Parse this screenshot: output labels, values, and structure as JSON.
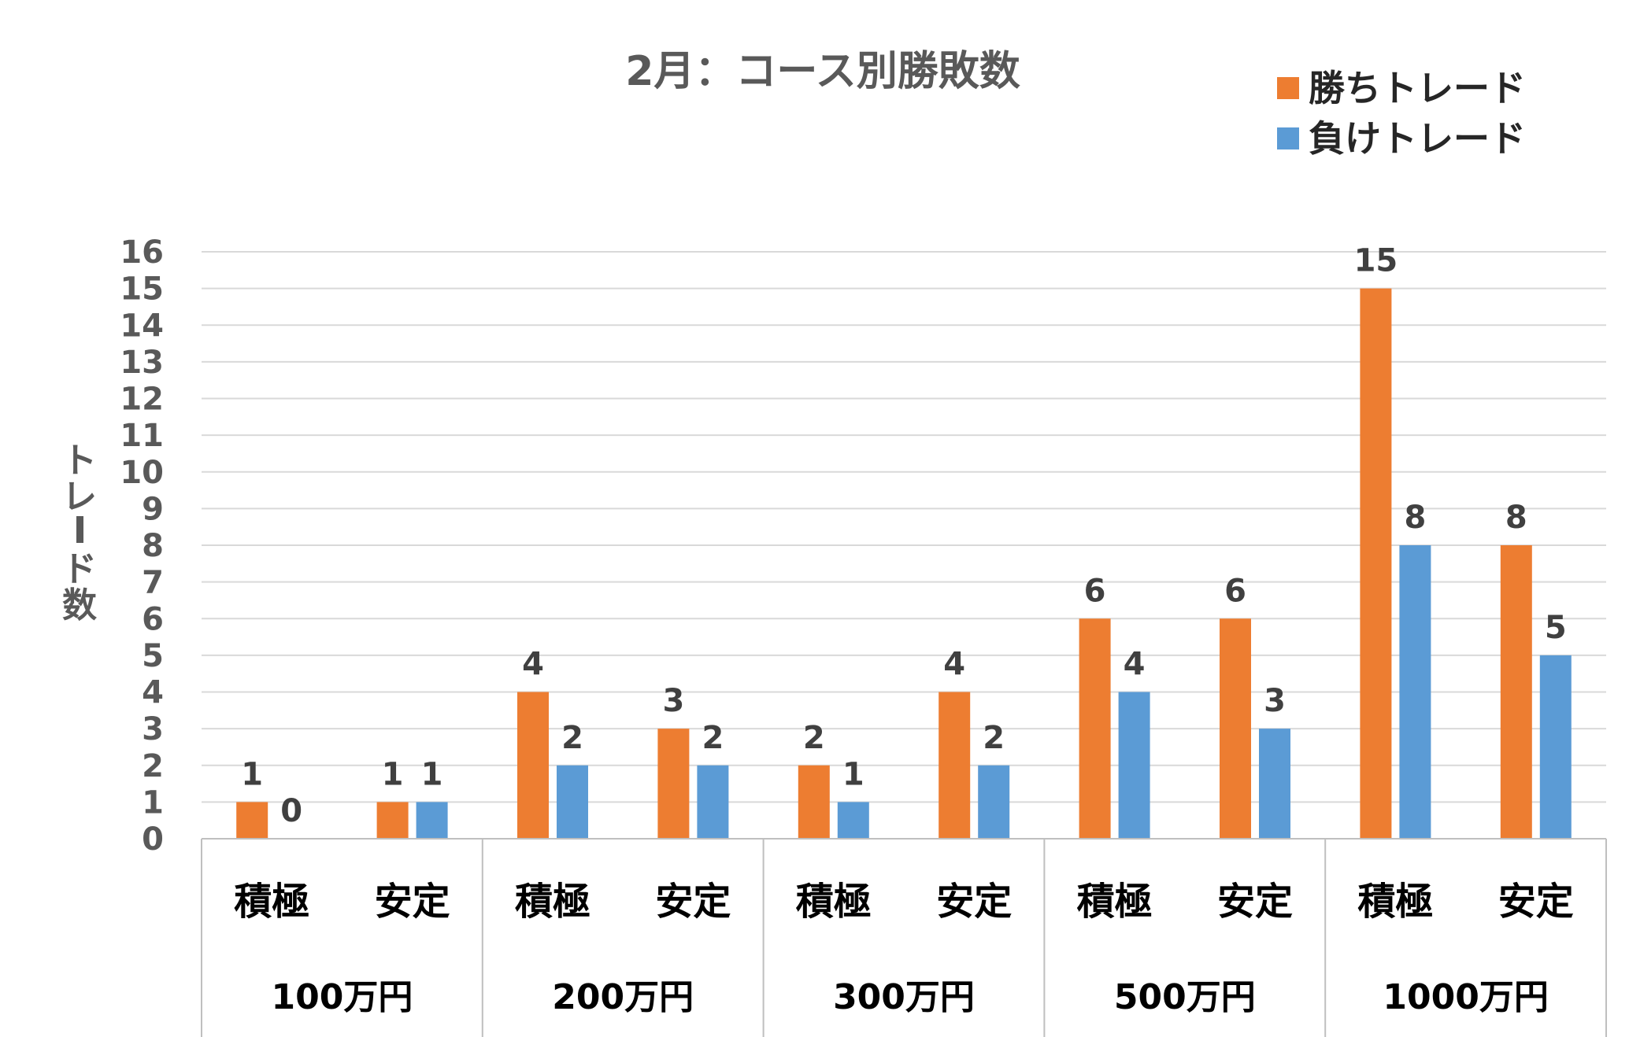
{
  "chart_data": {
    "type": "bar",
    "title": "2月：コース別勝敗数",
    "ylabel": "トレード数",
    "xlabel": "",
    "ylim": [
      0,
      16
    ],
    "yticks": [
      0,
      1,
      2,
      3,
      4,
      5,
      6,
      7,
      8,
      9,
      10,
      11,
      12,
      13,
      14,
      15,
      16
    ],
    "grid": true,
    "legend_position": "top-right",
    "groups": [
      "100万円",
      "200万円",
      "300万円",
      "500万円",
      "1000万円"
    ],
    "categories": [
      "積極",
      "安定",
      "積極",
      "安定",
      "積極",
      "安定",
      "積極",
      "安定",
      "積極",
      "安定"
    ],
    "series": [
      {
        "name": "勝ちトレード",
        "color": "#ED7D31",
        "values": [
          1,
          1,
          4,
          3,
          2,
          4,
          6,
          6,
          15,
          8
        ]
      },
      {
        "name": "負けトレード",
        "color": "#5B9BD5",
        "values": [
          0,
          1,
          2,
          2,
          1,
          2,
          4,
          3,
          8,
          5
        ]
      }
    ]
  }
}
